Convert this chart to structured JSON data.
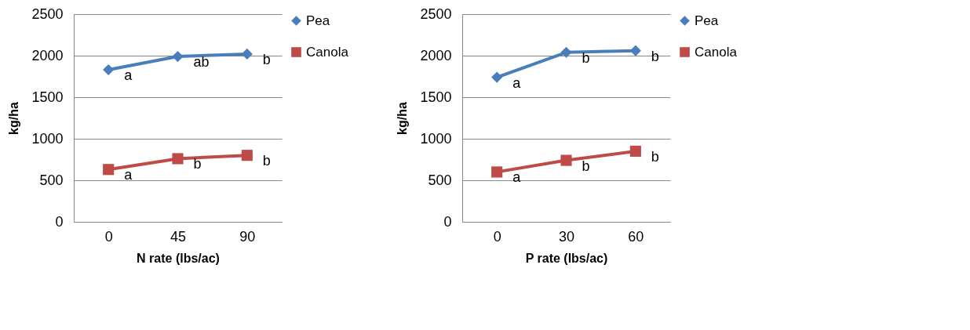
{
  "chart_data": [
    {
      "type": "line",
      "xlabel": "N  rate (lbs/ac)",
      "ylabel": "kg/ha",
      "categories": [
        "0",
        "45",
        "90"
      ],
      "ylim": [
        0,
        2500
      ],
      "yticks": [
        0,
        500,
        1000,
        1500,
        2000,
        2500
      ],
      "grid": "y",
      "legend": "right",
      "series": [
        {
          "name": "Pea",
          "color": "#4a7ebb",
          "marker": "diamond",
          "values": [
            1830,
            1990,
            2020
          ]
        },
        {
          "name": "Canola",
          "color": "#be4b48",
          "marker": "square",
          "values": [
            630,
            760,
            800
          ]
        }
      ],
      "annotations": [
        {
          "text": "a",
          "x": "0",
          "y": 1830
        },
        {
          "text": "ab",
          "x": "45",
          "y": 1990
        },
        {
          "text": "b",
          "x": "90",
          "y": 2020
        },
        {
          "text": "a",
          "x": "0",
          "y": 630
        },
        {
          "text": "b",
          "x": "45",
          "y": 760
        },
        {
          "text": "b",
          "x": "90",
          "y": 800
        }
      ]
    },
    {
      "type": "line",
      "xlabel": "P rate (lbs/ac)",
      "ylabel": "kg/ha",
      "categories": [
        "0",
        "30",
        "60"
      ],
      "ylim": [
        0,
        2500
      ],
      "yticks": [
        0,
        500,
        1000,
        1500,
        2000,
        2500
      ],
      "grid": "y",
      "legend": "right",
      "series": [
        {
          "name": "Pea",
          "color": "#4a7ebb",
          "marker": "diamond",
          "values": [
            1740,
            2040,
            2060
          ]
        },
        {
          "name": "Canola",
          "color": "#be4b48",
          "marker": "square",
          "values": [
            600,
            740,
            850
          ]
        }
      ],
      "annotations": [
        {
          "text": "a",
          "x": "0",
          "y": 1740
        },
        {
          "text": "b",
          "x": "30",
          "y": 2040
        },
        {
          "text": "b",
          "x": "60",
          "y": 2060
        },
        {
          "text": "a",
          "x": "0",
          "y": 600
        },
        {
          "text": "b",
          "x": "30",
          "y": 740
        },
        {
          "text": "b",
          "x": "60",
          "y": 850
        }
      ]
    }
  ]
}
